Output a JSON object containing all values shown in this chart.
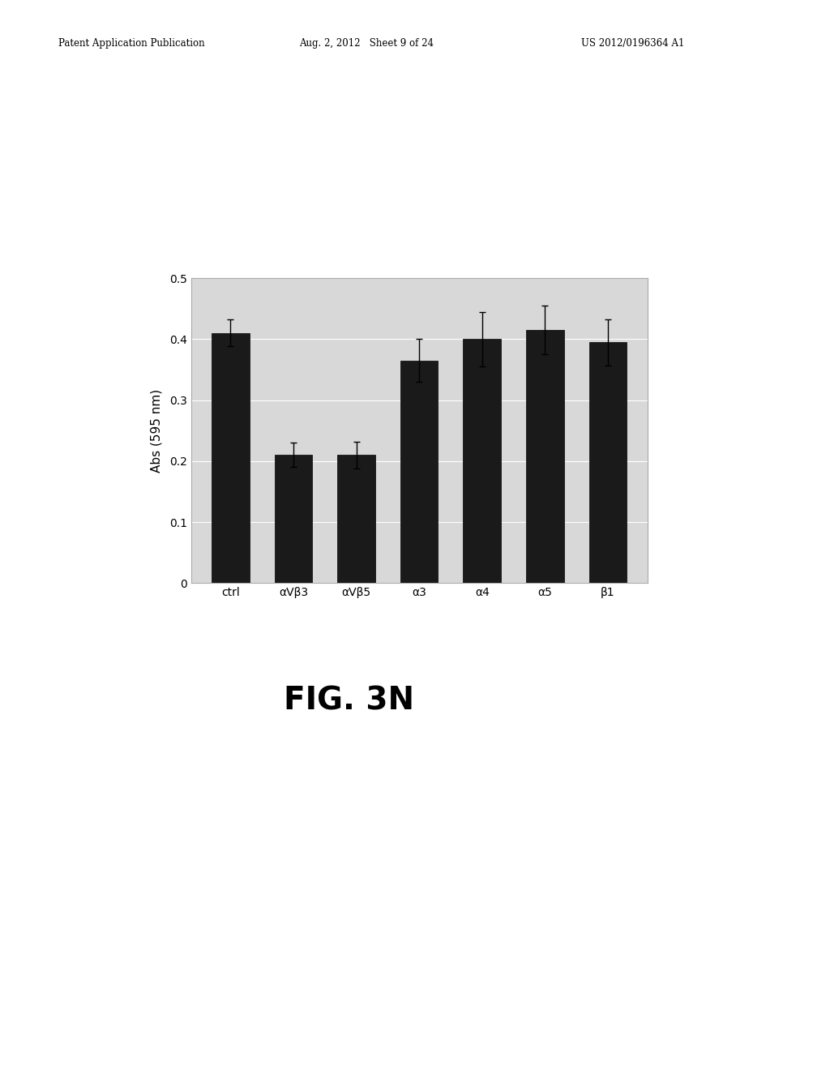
{
  "categories": [
    "ctrl",
    "αVβ3",
    "αVβ5",
    "α3",
    "α4",
    "α5",
    "β1"
  ],
  "values": [
    0.41,
    0.21,
    0.21,
    0.365,
    0.4,
    0.415,
    0.395
  ],
  "errors": [
    0.022,
    0.02,
    0.022,
    0.035,
    0.045,
    0.04,
    0.038
  ],
  "bar_color": "#1a1a1a",
  "bar_edge_color": "#000000",
  "ylabel": "Abs (595 nm)",
  "ylim": [
    0,
    0.5
  ],
  "yticks": [
    0,
    0.1,
    0.2,
    0.3,
    0.4,
    0.5
  ],
  "figure_caption": "FIG. 3N",
  "header_left": "Patent Application Publication",
  "header_center": "Aug. 2, 2012   Sheet 9 of 24",
  "header_right": "US 2012/0196364 A1",
  "background_color": "#ffffff",
  "plot_bg_color": "#d8d8d8",
  "bar_width": 0.6,
  "grid_color": "#ffffff",
  "fig_width": 10.24,
  "fig_height": 13.2,
  "dpi": 100
}
